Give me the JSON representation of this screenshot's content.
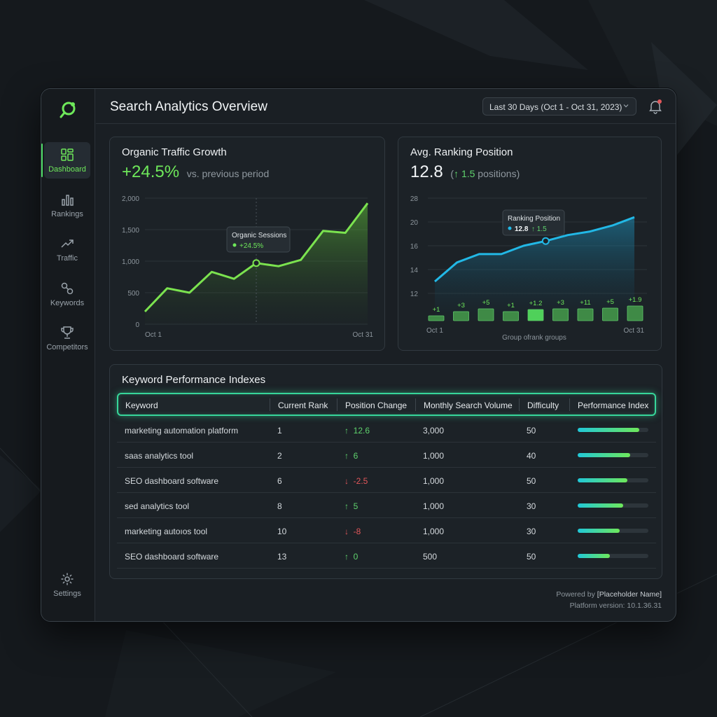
{
  "app": {
    "title": "Search Analytics Overview",
    "date_range": "Last 30 Days (Oct 1 - Oct 31, 2023)"
  },
  "sidebar": {
    "items": [
      {
        "label": "Dashboard",
        "icon": "dashboard-icon",
        "active": true
      },
      {
        "label": "Rankings",
        "icon": "bar-chart-icon",
        "active": false
      },
      {
        "label": "Traffic",
        "icon": "trend-icon",
        "active": false
      },
      {
        "label": "Keywords",
        "icon": "keywords-icon",
        "active": false
      },
      {
        "label": "Competitors",
        "icon": "trophy-icon",
        "active": false
      }
    ],
    "settings_label": "Settings"
  },
  "traffic_card": {
    "title": "Organic Traffic Growth",
    "value": "+24.5%",
    "comparison": "vs. previous period",
    "tooltip_title": "Organic Sessions",
    "tooltip_value": "+24.5%"
  },
  "ranking_card": {
    "title": "Avg. Ranking Position",
    "value": "12.8",
    "change_open": "(",
    "change_text": "↑ 1.5",
    "change_close": " positions)",
    "tooltip_title": "Ranking Position",
    "tooltip_value": "12.8",
    "tooltip_change": "↑ 1.5",
    "xlabel": "Group ofrank groups"
  },
  "chart_data": [
    {
      "type": "area",
      "title": "Organic Traffic Growth",
      "x_labels": [
        "Oct 1",
        "Oct 31"
      ],
      "yticks": [
        "0",
        "500",
        "1,000",
        "1,500",
        "2,000"
      ],
      "ylim": [
        0,
        2000
      ],
      "series": [
        {
          "values": [
            200,
            570,
            500,
            830,
            720,
            970,
            920,
            1020,
            1480,
            1450,
            1920
          ]
        }
      ],
      "grid": true,
      "color": "#7be34f"
    },
    {
      "type": "line",
      "title": "Avg. Ranking Position",
      "x_labels": [
        "Oct 1",
        "Oct 31"
      ],
      "yticks": [
        "12",
        "14",
        "16",
        "20",
        "28"
      ],
      "series": [
        {
          "values": [
            13.0,
            14.6,
            15.3,
            15.3,
            16.0,
            16.8,
            17.8,
            18.4,
            19.4,
            21.6
          ]
        }
      ],
      "bar_labels": [
        "+1",
        "+3",
        "+5",
        "+1",
        "+1.2",
        "+3",
        "+11",
        "+5",
        "+1.9"
      ],
      "grid": true,
      "color": "#22b8e6"
    }
  ],
  "keywords": {
    "title": "Keyword Performance Indexes",
    "columns": [
      "Keyword",
      "Current Rank",
      "Position Change",
      "Monthly Search Volume",
      "Difficulty",
      "Performance Index"
    ],
    "rows": [
      {
        "keyword": "marketing automation platform",
        "rank": "1",
        "arrow": "↑",
        "change": "12.6",
        "dir": "pos",
        "volume": "3,000",
        "difficulty": "50",
        "index": 0.87
      },
      {
        "keyword": "saas analytics tool",
        "rank": "2",
        "arrow": "↑",
        "change": "6",
        "dir": "pos",
        "volume": "1,000",
        "difficulty": "40",
        "index": 0.74
      },
      {
        "keyword": "SEO dashboard software",
        "rank": "6",
        "arrow": "↓",
        "change": "-2.5",
        "dir": "neg",
        "volume": "1,000",
        "difficulty": "50",
        "index": 0.7
      },
      {
        "keyword": "sed analytics tool",
        "rank": "8",
        "arrow": "↑",
        "change": "5",
        "dir": "pos",
        "volume": "1,000",
        "difficulty": "30",
        "index": 0.64
      },
      {
        "keyword": "marketing autoıos tool",
        "rank": "10",
        "arrow": "↓",
        "change": "-8",
        "dir": "neg",
        "volume": "1,000",
        "difficulty": "30",
        "index": 0.59
      },
      {
        "keyword": "SEO dashboard software",
        "rank": "13",
        "arrow": "↑",
        "change": "0",
        "dir": "pos",
        "volume": "500",
        "difficulty": "50",
        "index": 0.46
      }
    ]
  },
  "footer": {
    "powered_prefix": "Powered by ",
    "powered_name": "[Placeholder Name]",
    "version": "Platform version: 10.1.36.31"
  },
  "colors": {
    "accent_green": "#6ee85a",
    "accent_cyan": "#22b8e6",
    "negative": "#e2575a",
    "background": "#15191d"
  }
}
